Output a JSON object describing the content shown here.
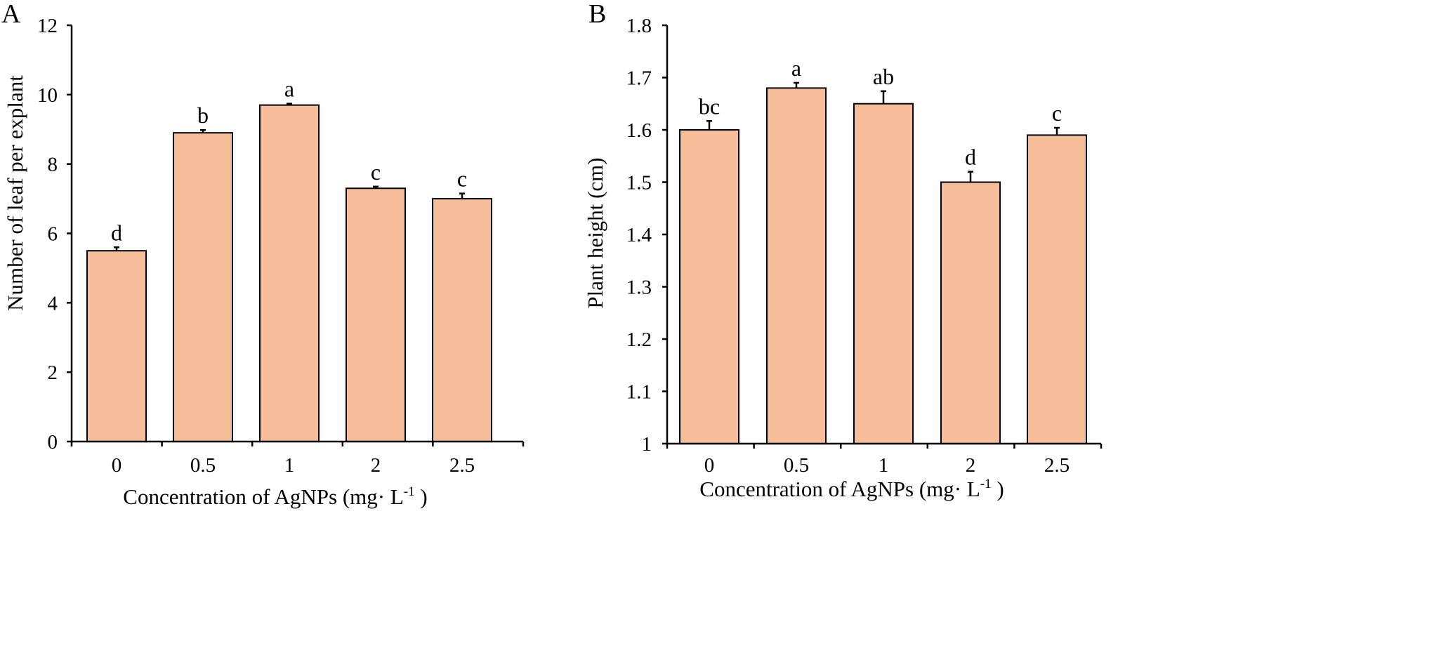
{
  "chart_data": [
    {
      "type": "bar",
      "panel_label": "A",
      "categories": [
        "0",
        "0.5",
        "1",
        "2",
        "2.5"
      ],
      "values": [
        5.5,
        8.9,
        9.7,
        7.3,
        7.0
      ],
      "errors": [
        0.1,
        0.08,
        0.04,
        0.05,
        0.15
      ],
      "significance": [
        "d",
        "b",
        "a",
        "c",
        "c"
      ],
      "xlabel": "Concentration of AgNPs (mg· L",
      "xlabel_sup": "-1",
      "xlabel_end": " )",
      "ylabel": "Number of leaf per explant",
      "ylim": [
        0,
        12
      ],
      "yticks": [
        "0",
        "2",
        "4",
        "6",
        "8",
        "10",
        "12"
      ],
      "ytick_values": [
        0,
        2,
        4,
        6,
        8,
        10,
        12
      ],
      "grid": false
    },
    {
      "type": "bar",
      "panel_label": "B",
      "categories": [
        "0",
        "0.5",
        "1",
        "2",
        "2.5"
      ],
      "values": [
        1.6,
        1.68,
        1.65,
        1.5,
        1.59
      ],
      "errors": [
        0.017,
        0.01,
        0.024,
        0.02,
        0.014
      ],
      "significance": [
        "bc",
        "a",
        "ab",
        "d",
        "c"
      ],
      "xlabel": "Concentration of AgNPs (mg· L",
      "xlabel_sup": "-1",
      "xlabel_end": " )",
      "ylabel": "Plant height (cm)",
      "ylim": [
        1,
        1.8
      ],
      "yticks": [
        "1",
        "1.1",
        "1.2",
        "1.3",
        "1.4",
        "1.5",
        "1.6",
        "1.7",
        "1.8"
      ],
      "ytick_values": [
        1,
        1.1,
        1.2,
        1.3,
        1.4,
        1.5,
        1.6,
        1.7,
        1.8
      ],
      "grid": false
    }
  ]
}
